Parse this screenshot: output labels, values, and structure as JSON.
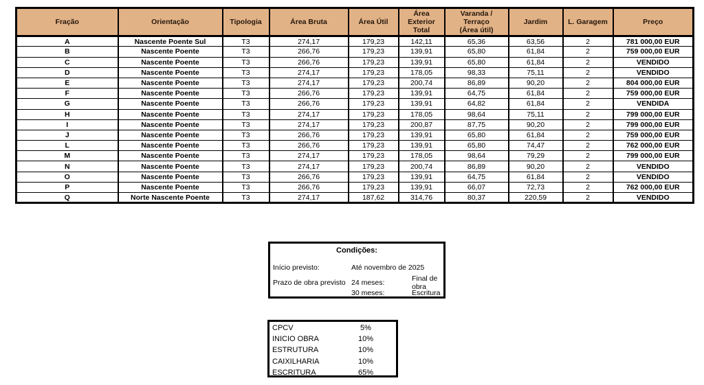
{
  "colors": {
    "header_bg": "#e2b287",
    "header_text": "#24170b",
    "border": "#000000",
    "page_bg": "#ffffff"
  },
  "table": {
    "columns": [
      "Fração",
      "Orientação",
      "Tipologia",
      "Área Bruta",
      "Área Útil",
      "Área Exterior\nTotal",
      "Varanda / Terraço\n(Área útil)",
      "Jardim",
      "L. Garagem",
      "Preço"
    ],
    "rows": [
      [
        "A",
        "Nascente Poente Sul",
        "T3",
        "274,17",
        "179,23",
        "142,11",
        "65,36",
        "63,56",
        "2",
        "781 000,00 EUR"
      ],
      [
        "B",
        "Nascente Poente",
        "T3",
        "266,76",
        "179,23",
        "139,91",
        "65,80",
        "61,84",
        "2",
        "759 000,00 EUR"
      ],
      [
        "C",
        "Nascente Poente",
        "T3",
        "266,76",
        "179,23",
        "139,91",
        "65,80",
        "61,84",
        "2",
        "VENDIDO"
      ],
      [
        "D",
        "Nascente Poente",
        "T3",
        "274,17",
        "179,23",
        "178,05",
        "98,33",
        "75,11",
        "2",
        "VENDIDO"
      ],
      [
        "E",
        "Nascente Poente",
        "T3",
        "274,17",
        "179,23",
        "200,74",
        "86,89",
        "90,20",
        "2",
        "804 000,00 EUR"
      ],
      [
        "F",
        "Nascente Poente",
        "T3",
        "266,76",
        "179,23",
        "139,91",
        "64,75",
        "61,84",
        "2",
        "759 000,00 EUR"
      ],
      [
        "G",
        "Nascente Poente",
        "T3",
        "266,76",
        "179,23",
        "139,91",
        "64,82",
        "61,84",
        "2",
        "VENDIDA"
      ],
      [
        "H",
        "Nascente Poente",
        "T3",
        "274,17",
        "179,23",
        "178,05",
        "98,64",
        "75,11",
        "2",
        "799 000,00 EUR"
      ],
      [
        "I",
        "Nascente Poente",
        "T3",
        "274,17",
        "179,23",
        "200,87",
        "87,75",
        "90,20",
        "2",
        "799 000,00 EUR"
      ],
      [
        "J",
        "Nascente Poente",
        "T3",
        "266,76",
        "179,23",
        "139,91",
        "65,80",
        "61,84",
        "2",
        "759 000,00 EUR"
      ],
      [
        "L",
        "Nascente Poente",
        "T3",
        "266,76",
        "179,23",
        "139,91",
        "65,80",
        "74,47",
        "2",
        "762 000,00 EUR"
      ],
      [
        "M",
        "Nascente Poente",
        "T3",
        "274,17",
        "179,23",
        "178,05",
        "98,64",
        "79,29",
        "2",
        "799 000,00 EUR"
      ],
      [
        "N",
        "Nascente Poente",
        "T3",
        "274,17",
        "179,23",
        "200,74",
        "86,89",
        "90,20",
        "2",
        "VENDIDO"
      ],
      [
        "O",
        "Nascente Poente",
        "T3",
        "266,76",
        "179,23",
        "139,91",
        "64,75",
        "61,84",
        "2",
        "VENDIDO"
      ],
      [
        "P",
        "Nascente Poente",
        "T3",
        "266,76",
        "179,23",
        "139,91",
        "66,07",
        "72,73",
        "2",
        "762 000,00 EUR"
      ],
      [
        "Q",
        "Norte Nascente Poente",
        "T3",
        "274,17",
        "187,62",
        "314,76",
        "80,37",
        "220,59",
        "2",
        "VENDIDO"
      ]
    ]
  },
  "conditions": {
    "title": "Condições:",
    "rows": [
      {
        "label": "Início previsto:",
        "mid": "Até novembro de 2025",
        "right": ""
      },
      {
        "label": "Prazo de obra previsto",
        "mid": "24 meses:",
        "right": "Final de obra"
      },
      {
        "label": "",
        "mid": "30 meses:",
        "right": "Escritura"
      }
    ]
  },
  "payments": {
    "items": [
      {
        "label": "CPCV",
        "value": "5%"
      },
      {
        "label": "INICIO OBRA",
        "value": "10%"
      },
      {
        "label": "ESTRUTURA",
        "value": "10%"
      },
      {
        "label": "CAIXILHARIA",
        "value": "10%"
      },
      {
        "label": "ESCRITURA",
        "value": "65%"
      }
    ]
  }
}
